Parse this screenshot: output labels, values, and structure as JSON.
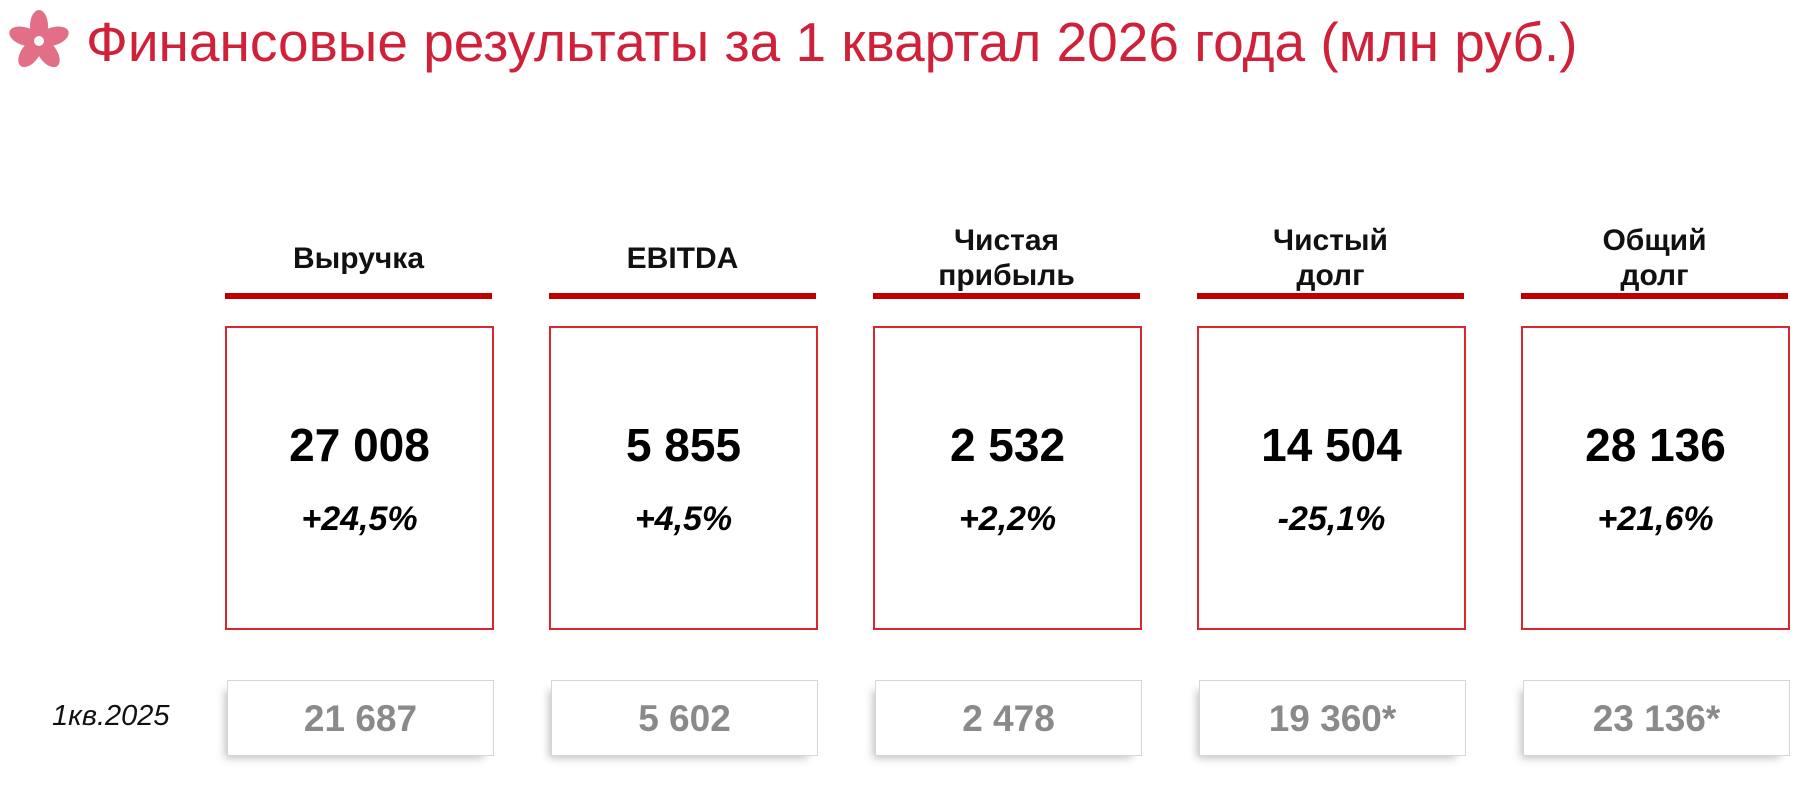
{
  "header": {
    "title": "Финансовые результаты за 1 квартал 2026 года (млн руб.)"
  },
  "comparison_label": "1кв.2025",
  "metrics": [
    {
      "label": [
        "Выручка"
      ],
      "value": "27 008",
      "change": "+24,5%",
      "prior": "21 687"
    },
    {
      "label": [
        "EBITDA"
      ],
      "value": "5 855",
      "change": "+4,5%",
      "prior": "5 602"
    },
    {
      "label": [
        "Чистая",
        "прибыль"
      ],
      "value": "2 532",
      "change": "+2,2%",
      "prior": "2 478"
    },
    {
      "label": [
        "Чистый",
        "долг"
      ],
      "value": "14 504",
      "change": "-25,1%",
      "prior": "19 360*"
    },
    {
      "label": [
        "Общий",
        "долг"
      ],
      "value": "28 136",
      "change": "+21,6%",
      "prior": "23 136*"
    }
  ]
}
